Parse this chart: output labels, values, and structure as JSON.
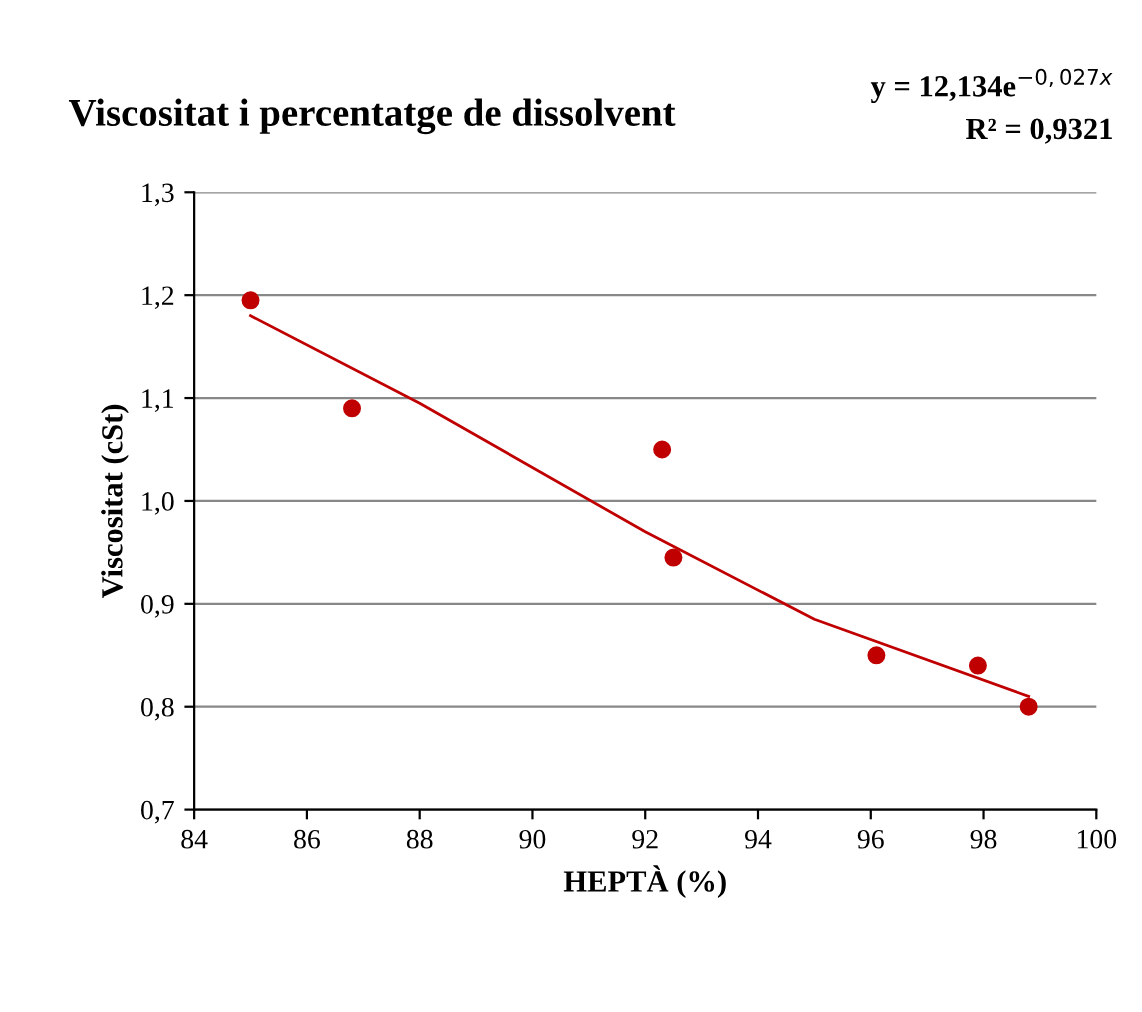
{
  "chart_data": {
    "type": "scatter",
    "title": "Viscositat i percentatge de dissolvent",
    "xlabel": "HEPTÀ (%)",
    "ylabel": "Viscositat (cSt)",
    "annotations": [
      "y = 12,134e$^{−0,027x}$",
      "R² = 0,9321"
    ],
    "series": [
      {
        "color": "#c00000",
        "marker": "circle",
        "x": [
          85.0,
          86.8,
          92.3,
          92.5,
          96.1,
          97.9,
          98.8
        ],
        "values": [
          1.195,
          1.09,
          1.05,
          0.945,
          0.85,
          0.84,
          0.8
        ]
      },
      {
        "type": "line",
        "color": "#c00000",
        "marker": "none",
        "line_style": "solid",
        "x": [
          85.0,
          88.0,
          92.0,
          95.0,
          98.8
        ],
        "values": [
          1.18,
          1.095,
          0.97,
          0.885,
          0.81
        ]
      }
    ],
    "xlim": [
      84,
      100
    ],
    "xticks": [
      84,
      86,
      88,
      90,
      92,
      94,
      96,
      98,
      100
    ],
    "ylim": [
      0.7,
      1.3
    ],
    "yticks": [
      {
        "value": 0.7,
        "label": "0,7"
      },
      {
        "value": 0.8,
        "label": "0,8"
      },
      {
        "value": 0.9,
        "label": "0,9"
      },
      {
        "value": 1.0,
        "label": "1,0"
      },
      {
        "value": 1.1,
        "label": "1,1"
      },
      {
        "value": 1.2,
        "label": "1,2"
      },
      {
        "value": 1.3,
        "label": "1,3"
      }
    ],
    "grid": "y",
    "legend": false
  }
}
